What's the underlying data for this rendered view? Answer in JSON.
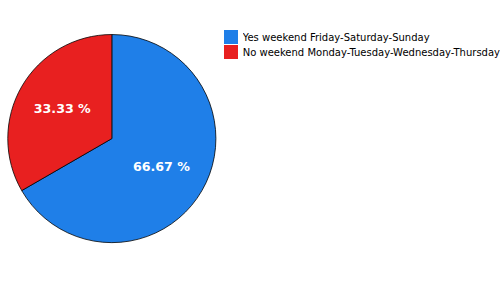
{
  "chart_data": {
    "type": "pie",
    "categories": [
      "Yes weekend Friday-Saturday-Sunday",
      "No weekend Monday-Tuesday-Wednesday-Thursday"
    ],
    "values": [
      66.67,
      33.33
    ],
    "value_labels": [
      "66.67 %",
      "33.33 %"
    ],
    "colors": [
      "#1F7FE8",
      "#E82020"
    ],
    "data_labels": true,
    "legend": "right"
  }
}
